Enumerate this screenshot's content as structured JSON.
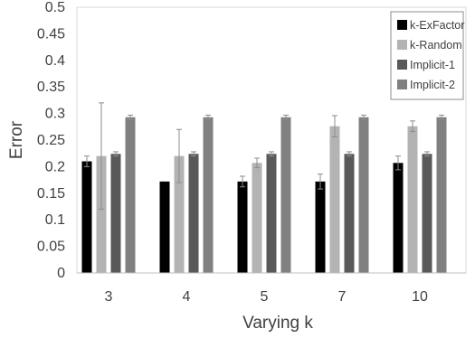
{
  "chart_data": {
    "type": "bar",
    "title": "",
    "xlabel": "Varying k",
    "ylabel": "Error",
    "ylim": [
      0,
      0.5
    ],
    "yticks": [
      "0",
      "0.05",
      "0.1",
      "0.15",
      "0.2",
      "0.25",
      "0.3",
      "0.35",
      "0.4",
      "0.45",
      "0.5"
    ],
    "categories": [
      "3",
      "4",
      "5",
      "7",
      "10"
    ],
    "grid": false,
    "legend_position": "top-right",
    "series": [
      {
        "name": "k-ExFactor",
        "color": "#000000",
        "values": [
          0.21,
          0.172,
          0.172,
          0.172,
          0.207
        ],
        "errors": [
          0.01,
          0.0,
          0.01,
          0.014,
          0.013
        ]
      },
      {
        "name": "k-Random",
        "color": "#b3b3b3",
        "values": [
          0.22,
          0.22,
          0.207,
          0.276,
          0.276
        ],
        "errors": [
          0.1,
          0.05,
          0.009,
          0.02,
          0.01
        ]
      },
      {
        "name": "Implicit-1",
        "color": "#595959",
        "values": [
          0.224,
          0.224,
          0.224,
          0.224,
          0.224
        ],
        "errors": [
          0.004,
          0.004,
          0.004,
          0.004,
          0.004
        ]
      },
      {
        "name": "Implicit-2",
        "color": "#808080",
        "values": [
          0.293,
          0.293,
          0.293,
          0.293,
          0.293
        ],
        "errors": [
          0.004,
          0.004,
          0.004,
          0.004,
          0.004
        ]
      }
    ]
  }
}
